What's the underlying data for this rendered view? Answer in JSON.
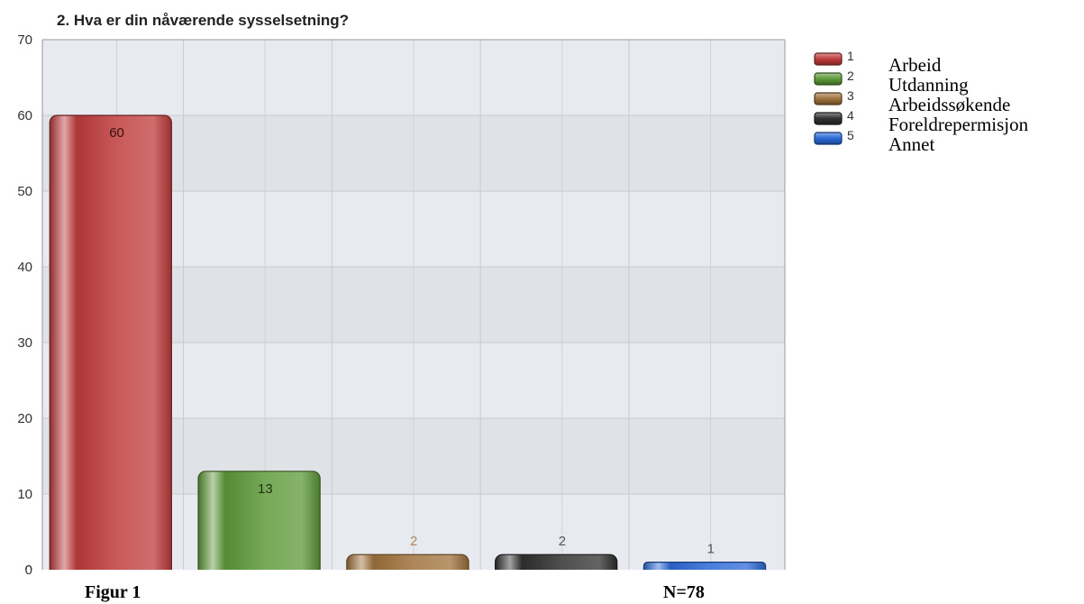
{
  "chart_data": {
    "type": "bar",
    "title": "2. Hva er din nåværende sysselsetning?",
    "categories": [
      "1",
      "2",
      "3",
      "4",
      "5"
    ],
    "category_names": [
      "Arbeid",
      "Utdanning",
      "Arbeidssøkende",
      "Foreldrepermisjon",
      "Annet"
    ],
    "values": [
      60,
      13,
      2,
      2,
      1
    ],
    "colors": [
      "#c03c3c",
      "#5e9a3a",
      "#a0723c",
      "#303030",
      "#2c6ad8"
    ],
    "label_colors": [
      "#3a1010",
      "#1e3310",
      "#b08a5a",
      "#555555",
      "#555555"
    ],
    "yticks": [
      0,
      10,
      20,
      30,
      40,
      50,
      60,
      70
    ],
    "ylim": [
      0,
      70
    ],
    "grid": true,
    "legend_position": "right",
    "xlabel": "",
    "ylabel": ""
  },
  "captions": {
    "figure": "Figur 1",
    "sample_size": "N=78"
  }
}
